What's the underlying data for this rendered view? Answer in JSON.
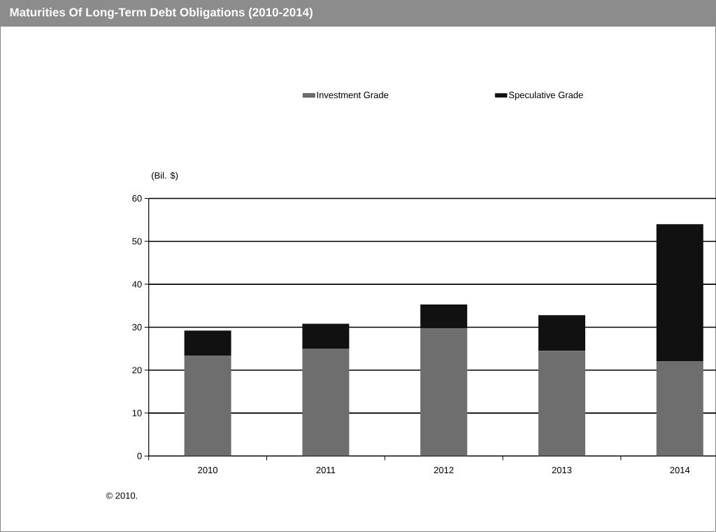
{
  "chart_data": {
    "type": "bar",
    "stacked": true,
    "title": "Maturities Of Long-Term Debt Obligations (2010-2014)",
    "ylabel": "(Bil. $)",
    "categories": [
      "2010",
      "2011",
      "2012",
      "2013",
      "2014"
    ],
    "series": [
      {
        "name": "Investment Grade",
        "color": "#6e6e6e",
        "values": [
          23.3,
          25.0,
          29.7,
          24.5,
          22.0
        ]
      },
      {
        "name": "Speculative Grade",
        "color": "#111111",
        "values": [
          5.9,
          5.8,
          5.6,
          8.3,
          32.0
        ]
      }
    ],
    "ylim": [
      0,
      60
    ],
    "yticks": [
      0,
      10,
      20,
      30,
      40,
      50,
      60
    ],
    "grid": "y",
    "legend": "top",
    "annotations": [
      "© 2010."
    ]
  }
}
